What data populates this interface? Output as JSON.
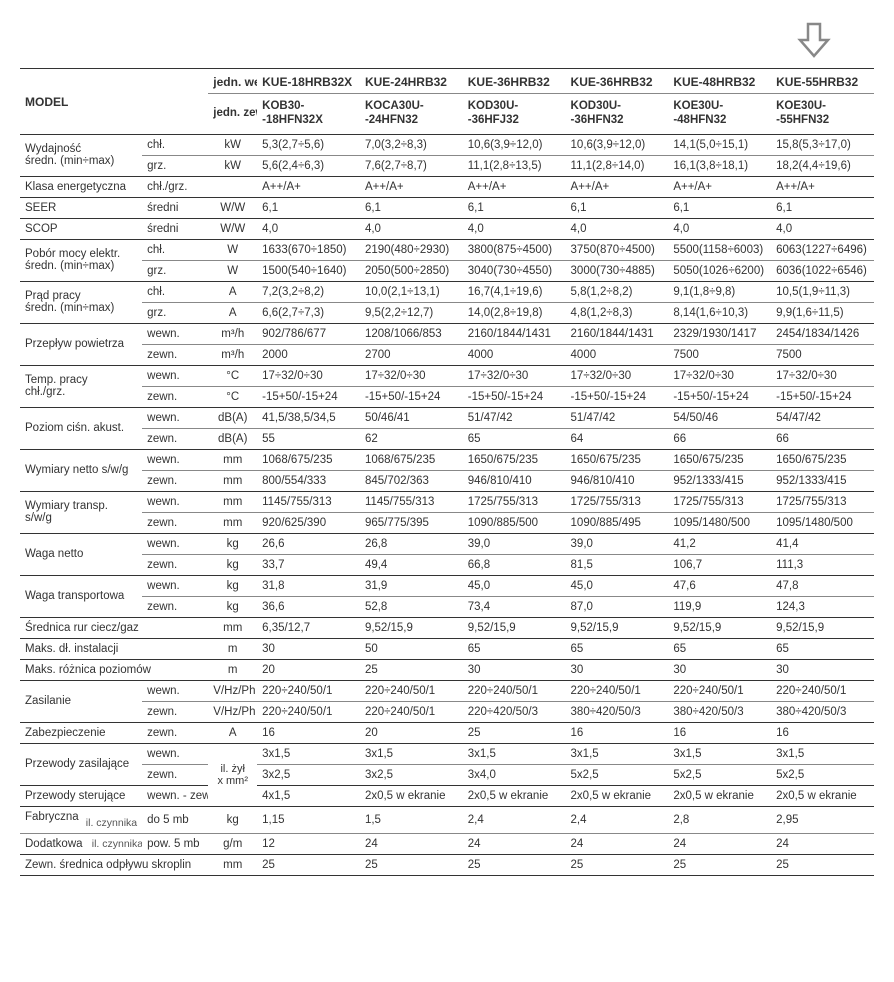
{
  "arrow_color": "#888888",
  "header": {
    "model_label": "MODEL",
    "inner_label": "jedn. wewn.",
    "outer_label": "jedn. zewn.",
    "models_inner": [
      "KUE-18HRB32X",
      "KUE-24HRB32",
      "KUE-36HRB32",
      "KUE-36HRB32",
      "KUE-48HRB32",
      "KUE-55HRB32"
    ],
    "models_outer": [
      "KOB30-\n-18HFN32X",
      "KOCA30U-\n-24HFN32",
      "KOD30U-\n-36HFJ32",
      "KOD30U-\n-36HFN32",
      "KOE30U-\n-48HFN32",
      "KOE30U-\n-55HFN32"
    ]
  },
  "rows": [
    {
      "g": "Wydajność\nśredn. (min÷max)",
      "s": "chł.",
      "u": "kW",
      "v": [
        "5,3(2,7÷5,6)",
        "7,0(3,2÷8,3)",
        "10,6(3,9÷12,0)",
        "10,6(3,9÷12,0)",
        "14,1(5,0÷15,1)",
        "15,8(5,3÷17,0)"
      ],
      "topthick": true
    },
    {
      "g": "",
      "s": "grz.",
      "u": "kW",
      "v": [
        "5,6(2,4÷6,3)",
        "7,6(2,7÷8,7)",
        "11,1(2,8÷13,5)",
        "11,1(2,8÷14,0)",
        "16,1(3,8÷18,1)",
        "18,2(4,4÷19,6)"
      ]
    },
    {
      "g": "Klasa energetyczna",
      "s": "chł./grz.",
      "u": "",
      "v": [
        "A++/A+",
        "A++/A+",
        "A++/A+",
        "A++/A+",
        "A++/A+",
        "A++/A+"
      ],
      "topthick": true
    },
    {
      "g": "SEER",
      "s": "średni",
      "u": "W/W",
      "v": [
        "6,1",
        "6,1",
        "6,1",
        "6,1",
        "6,1",
        "6,1"
      ],
      "topthick": true
    },
    {
      "g": "SCOP",
      "s": "średni",
      "u": "W/W",
      "v": [
        "4,0",
        "4,0",
        "4,0",
        "4,0",
        "4,0",
        "4,0"
      ],
      "topthick": true
    },
    {
      "g": "Pobór mocy elektr.\nśredn. (min÷max)",
      "s": "chł.",
      "u": "W",
      "v": [
        "1633(670÷1850)",
        "2190(480÷2930)",
        "3800(875÷4500)",
        "3750(870÷4500)",
        "5500(1158÷6003)",
        "6063(1227÷6496)"
      ],
      "topthick": true
    },
    {
      "g": "",
      "s": "grz.",
      "u": "W",
      "v": [
        "1500(540÷1640)",
        "2050(500÷2850)",
        "3040(730÷4550)",
        "3000(730÷4885)",
        "5050(1026÷6200)",
        "6036(1022÷6546)"
      ]
    },
    {
      "g": "Prąd pracy\nśredn. (min÷max)",
      "s": "chł.",
      "u": "A",
      "v": [
        "7,2(3,2÷8,2)",
        "10,0(2,1÷13,1)",
        "16,7(4,1÷19,6)",
        "5,8(1,2÷8,2)",
        "9,1(1,8÷9,8)",
        "10,5(1,9÷11,3)"
      ],
      "topthick": true
    },
    {
      "g": "",
      "s": "grz.",
      "u": "A",
      "v": [
        "6,6(2,7÷7,3)",
        "9,5(2,2÷12,7)",
        "14,0(2,8÷19,8)",
        "4,8(1,2÷8,3)",
        "8,14(1,6÷10,3)",
        "9,9(1,6÷11,5)"
      ]
    },
    {
      "g": "Przepływ powietrza",
      "s": "wewn.",
      "u": "m³/h",
      "v": [
        "902/786/677",
        "1208/1066/853",
        "2160/1844/1431",
        "2160/1844/1431",
        "2329/1930/1417",
        "2454/1834/1426"
      ],
      "topthick": true
    },
    {
      "g": "",
      "s": "zewn.",
      "u": "m³/h",
      "v": [
        "2000",
        "2700",
        "4000",
        "4000",
        "7500",
        "7500"
      ]
    },
    {
      "g": "Temp. pracy\nchł./grz.",
      "s": "wewn.",
      "u": "°C",
      "v": [
        "17÷32/0÷30",
        "17÷32/0÷30",
        "17÷32/0÷30",
        "17÷32/0÷30",
        "17÷32/0÷30",
        "17÷32/0÷30"
      ],
      "topthick": true
    },
    {
      "g": "",
      "s": "zewn.",
      "u": "°C",
      "v": [
        "-15+50/-15+24",
        "-15+50/-15+24",
        "-15+50/-15+24",
        "-15+50/-15+24",
        "-15+50/-15+24",
        "-15+50/-15+24"
      ]
    },
    {
      "g": "Poziom ciśn. akust.",
      "s": "wewn.",
      "u": "dB(A)",
      "v": [
        "41,5/38,5/34,5",
        "50/46/41",
        "51/47/42",
        "51/47/42",
        "54/50/46",
        "54/47/42"
      ],
      "topthick": true
    },
    {
      "g": "",
      "s": "zewn.",
      "u": "dB(A)",
      "v": [
        "55",
        "62",
        "65",
        "64",
        "66",
        "66"
      ]
    },
    {
      "g": "Wymiary netto s/w/g",
      "s": "wewn.",
      "u": "mm",
      "v": [
        "1068/675/235",
        "1068/675/235",
        "1650/675/235",
        "1650/675/235",
        "1650/675/235",
        "1650/675/235"
      ],
      "topthick": true
    },
    {
      "g": "",
      "s": "zewn.",
      "u": "mm",
      "v": [
        "800/554/333",
        "845/702/363",
        "946/810/410",
        "946/810/410",
        "952/1333/415",
        "952/1333/415"
      ]
    },
    {
      "g": "Wymiary transp.\ns/w/g",
      "s": "wewn.",
      "u": "mm",
      "v": [
        "1145/755/313",
        "1145/755/313",
        "1725/755/313",
        "1725/755/313",
        "1725/755/313",
        "1725/755/313"
      ],
      "topthick": true
    },
    {
      "g": "",
      "s": "zewn.",
      "u": "mm",
      "v": [
        "920/625/390",
        "965/775/395",
        "1090/885/500",
        "1090/885/495",
        "1095/1480/500",
        "1095/1480/500"
      ]
    },
    {
      "g": "Waga netto",
      "s": "wewn.",
      "u": "kg",
      "v": [
        "26,6",
        "26,8",
        "39,0",
        "39,0",
        "41,2",
        "41,4"
      ],
      "topthick": true
    },
    {
      "g": "",
      "s": "zewn.",
      "u": "kg",
      "v": [
        "33,7",
        "49,4",
        "66,8",
        "81,5",
        "106,7",
        "111,3"
      ]
    },
    {
      "g": "Waga transportowa",
      "s": "wewn.",
      "u": "kg",
      "v": [
        "31,8",
        "31,9",
        "45,0",
        "45,0",
        "47,6",
        "47,8"
      ],
      "topthick": true
    },
    {
      "g": "",
      "s": "zewn.",
      "u": "kg",
      "v": [
        "36,6",
        "52,8",
        "73,4",
        "87,0",
        "119,9",
        "124,3"
      ]
    },
    {
      "g": "Średnica rur ciecz/gaz",
      "s": "",
      "u": "mm",
      "v": [
        "6,35/12,7",
        "9,52/15,9",
        "9,52/15,9",
        "9,52/15,9",
        "9,52/15,9",
        "9,52/15,9"
      ],
      "topthick": true,
      "span2": true
    },
    {
      "g": "Maks. dł. instalacji",
      "s": "",
      "u": "m",
      "v": [
        "30",
        "50",
        "65",
        "65",
        "65",
        "65"
      ],
      "topthick": true,
      "span2": true
    },
    {
      "g": "Maks. różnica poziomów",
      "s": "",
      "u": "m",
      "v": [
        "20",
        "25",
        "30",
        "30",
        "30",
        "30"
      ],
      "topthick": true,
      "span2": true
    },
    {
      "g": "Zasilanie",
      "s": "wewn.",
      "u": "V/Hz/Ph",
      "v": [
        "220÷240/50/1",
        "220÷240/50/1",
        "220÷240/50/1",
        "220÷240/50/1",
        "220÷240/50/1",
        "220÷240/50/1"
      ],
      "topthick": true
    },
    {
      "g": "",
      "s": "zewn.",
      "u": "V/Hz/Ph",
      "v": [
        "220÷240/50/1",
        "220÷240/50/1",
        "220÷420/50/3",
        "380÷420/50/3",
        "380÷420/50/3",
        "380÷420/50/3"
      ]
    },
    {
      "g": "Zabezpieczenie",
      "s": "zewn.",
      "u": "A",
      "v": [
        "16",
        "20",
        "25",
        "16",
        "16",
        "16"
      ],
      "topthick": true
    },
    {
      "g": "Przewody zasilające",
      "s": "wewn.",
      "u": "il. żył\nx mm²",
      "u_rowspan": 3,
      "v": [
        "3x1,5",
        "3x1,5",
        "3x1,5",
        "3x1,5",
        "3x1,5",
        "3x1,5"
      ],
      "topthick": true
    },
    {
      "g": "",
      "s": "zewn.",
      "u": "",
      "nou": true,
      "v": [
        "3x2,5",
        "3x2,5",
        "3x4,0",
        "5x2,5",
        "5x2,5",
        "5x2,5"
      ]
    },
    {
      "g": "Przewody sterujące",
      "s": "wewn. - zewn.",
      "u": "",
      "nou": true,
      "v": [
        "4x1,5",
        "2x0,5 w ekranie",
        "2x0,5 w ekranie",
        "2x0,5 w ekranie",
        "2x0,5 w ekranie",
        "2x0,5 w ekranie"
      ],
      "topthick": true
    },
    {
      "g": "Fabryczna",
      "g2": "il. czynnika",
      "s": "do 5 mb",
      "u": "kg",
      "v": [
        "1,15",
        "1,5",
        "2,4",
        "2,4",
        "2,8",
        "2,95"
      ],
      "topthick": true,
      "split": true
    },
    {
      "g": "Dodatkowa",
      "s": "pow. 5 mb",
      "u": "g/m",
      "v": [
        "12",
        "24",
        "24",
        "24",
        "24",
        "24"
      ],
      "split": true
    },
    {
      "g": "Zewn. średnica odpływu skroplin",
      "s": "",
      "u": "mm",
      "v": [
        "25",
        "25",
        "25",
        "25",
        "25",
        "25"
      ],
      "topthick": true,
      "span2": true,
      "bottomthick": true
    }
  ]
}
